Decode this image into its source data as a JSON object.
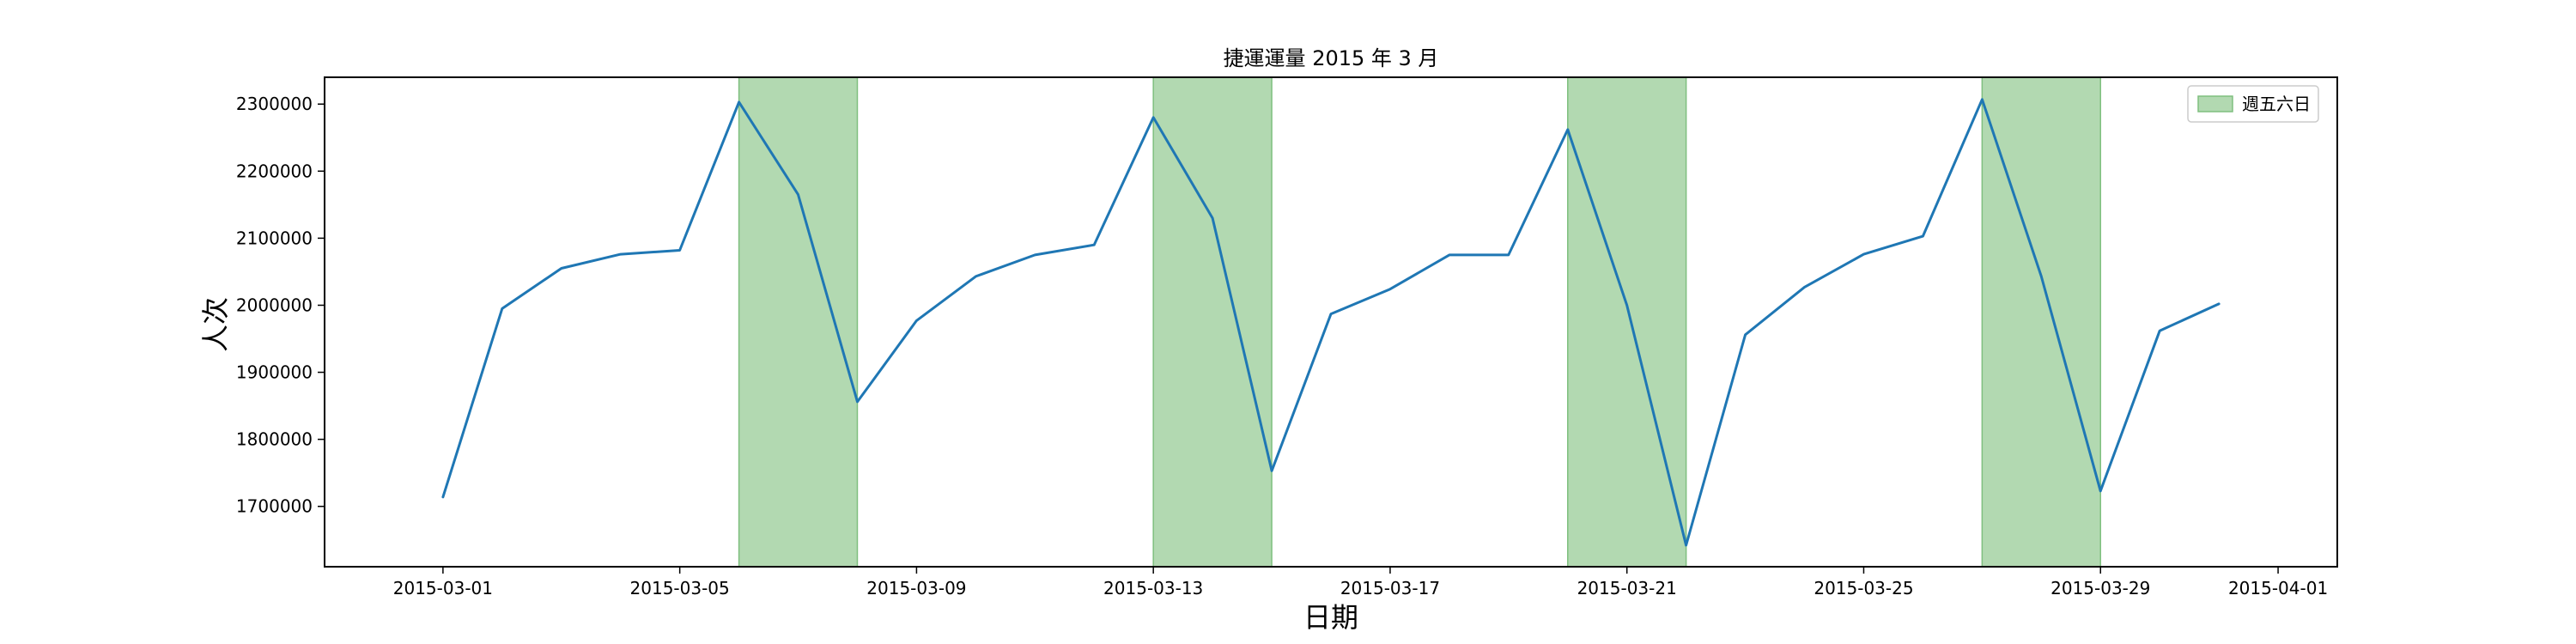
{
  "chart_data": {
    "type": "line",
    "title": "捷運運量 2015 年 3 月",
    "xlabel": "日期",
    "ylabel": "人次",
    "legend": {
      "label": "週五六日",
      "placement": "top-right"
    },
    "colors": {
      "line": "#1f77b4",
      "span_fill": "#b2d9b1",
      "span_edge": "#7fbf7f"
    },
    "grid": false,
    "xlim": [
      "2015-02-27",
      "2015-04-02"
    ],
    "ylim": [
      1610000,
      2340000
    ],
    "x_ticks": [
      "2015-03-01",
      "2015-03-05",
      "2015-03-09",
      "2015-03-13",
      "2015-03-17",
      "2015-03-21",
      "2015-03-25",
      "2015-03-29",
      "2015-04-01"
    ],
    "y_ticks": [
      1700000,
      1800000,
      1900000,
      2000000,
      2100000,
      2200000,
      2300000
    ],
    "x_tick_labels": [
      "2015-03-01",
      "2015-03-05",
      "2015-03-09",
      "2015-03-13",
      "2015-03-17",
      "2015-03-21",
      "2015-03-25",
      "2015-03-29",
      "2015-04-01"
    ],
    "y_tick_labels": [
      "1700000",
      "1800000",
      "1900000",
      "2000000",
      "2100000",
      "2200000",
      "2300000"
    ],
    "highlight_spans": [
      {
        "start": "2015-03-06",
        "end": "2015-03-08"
      },
      {
        "start": "2015-03-13",
        "end": "2015-03-15"
      },
      {
        "start": "2015-03-20",
        "end": "2015-03-22"
      },
      {
        "start": "2015-03-27",
        "end": "2015-03-29"
      }
    ],
    "series": [
      {
        "x": [
          "2015-03-01",
          "2015-03-02",
          "2015-03-03",
          "2015-03-04",
          "2015-03-05",
          "2015-03-06",
          "2015-03-07",
          "2015-03-08",
          "2015-03-09",
          "2015-03-10",
          "2015-03-11",
          "2015-03-12",
          "2015-03-13",
          "2015-03-14",
          "2015-03-15",
          "2015-03-16",
          "2015-03-17",
          "2015-03-18",
          "2015-03-19",
          "2015-03-20",
          "2015-03-21",
          "2015-03-22",
          "2015-03-23",
          "2015-03-24",
          "2015-03-25",
          "2015-03-26",
          "2015-03-27",
          "2015-03-28",
          "2015-03-29",
          "2015-03-30",
          "2015-03-31"
        ],
        "values": [
          1714000,
          1995000,
          2055000,
          2076000,
          2082000,
          2303000,
          2165000,
          1856000,
          1977000,
          2043000,
          2075000,
          2090000,
          2280000,
          2130000,
          1753000,
          1987000,
          2024000,
          2075000,
          2075000,
          2262000,
          2000000,
          1642000,
          1956000,
          2027000,
          2076000,
          2103000,
          2307000,
          2043000,
          1723000,
          1962000,
          2002000
        ]
      }
    ]
  }
}
